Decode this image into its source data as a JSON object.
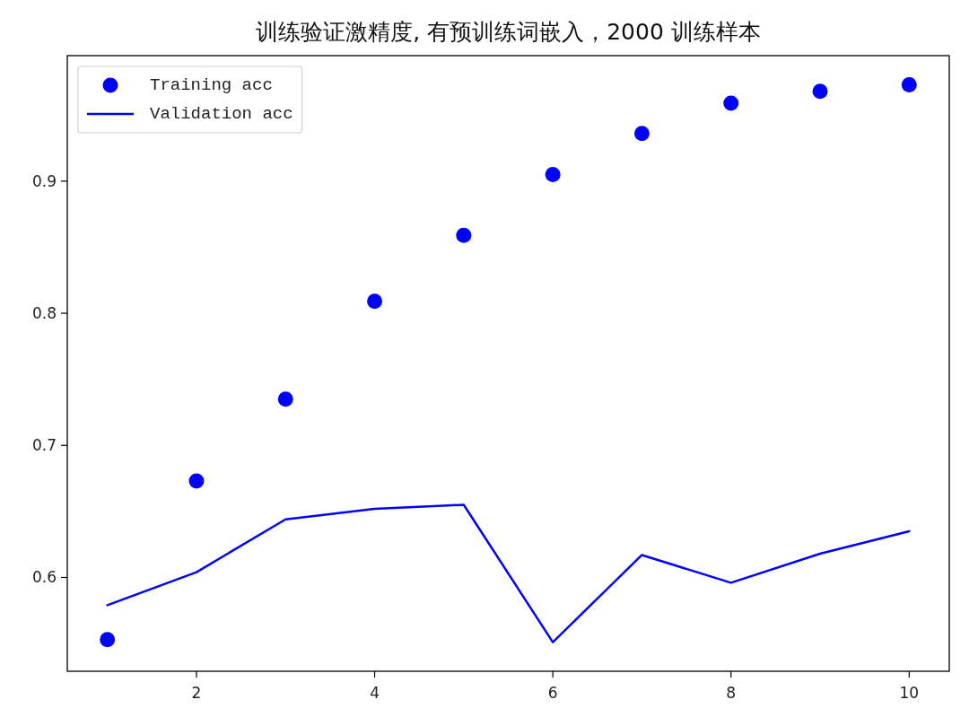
{
  "chart_data": {
    "type": "line",
    "title": "训练验证激精度, 有预训练词嵌入，2000 训练样本",
    "x": [
      1,
      2,
      3,
      4,
      5,
      6,
      7,
      8,
      9,
      10
    ],
    "series": [
      {
        "name": "Training acc",
        "type": "scatter",
        "marker": "circle",
        "color": "#0000ff",
        "values": [
          0.553,
          0.673,
          0.735,
          0.809,
          0.859,
          0.905,
          0.936,
          0.959,
          0.968,
          0.973
        ]
      },
      {
        "name": "Validation acc",
        "color": "#0000ff",
        "values": [
          0.579,
          0.604,
          0.644,
          0.652,
          0.655,
          0.551,
          0.617,
          0.596,
          0.618,
          0.635
        ]
      }
    ],
    "xlim": [
      0.55,
      10.45
    ],
    "ylim": [
      0.529,
      0.995
    ],
    "xticks": [
      2,
      4,
      6,
      8,
      10
    ],
    "yticks": [
      0.6,
      0.7,
      0.8,
      0.9
    ],
    "legend": "top left"
  }
}
